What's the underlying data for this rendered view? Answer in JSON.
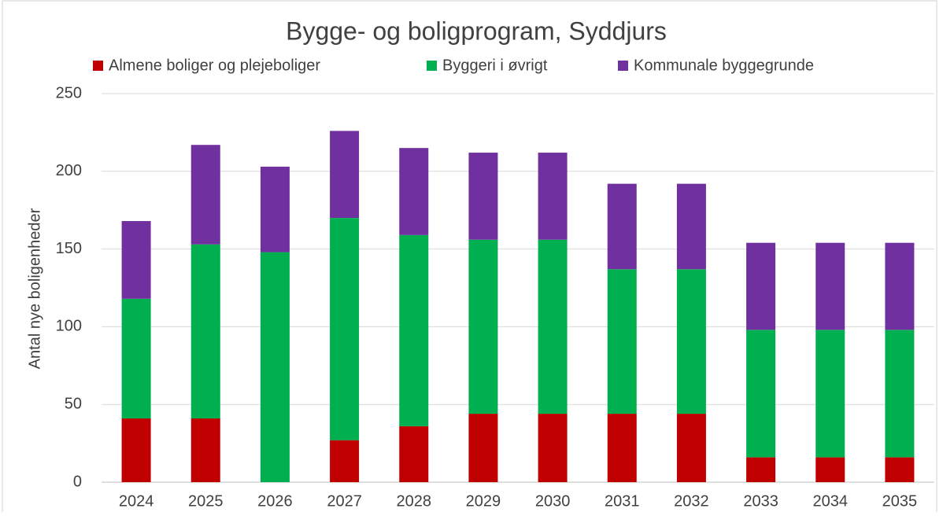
{
  "chart_data": {
    "type": "stacked_bar",
    "title": "Bygge- og boligprogram, Syddjurs",
    "y_label": "Antal nye boligenheder",
    "categories": [
      "2024",
      "2025",
      "2026",
      "2027",
      "2028",
      "2029",
      "2030",
      "2031",
      "2032",
      "2033",
      "2034",
      "2035"
    ],
    "series": [
      {
        "name": "Almene boliger og plejeboliger",
        "color": "#c00000",
        "values": [
          41,
          41,
          0,
          27,
          36,
          44,
          44,
          44,
          44,
          16,
          16,
          16
        ]
      },
      {
        "name": "Byggeri i øvrigt",
        "color": "#00b050",
        "values": [
          77,
          112,
          148,
          143,
          123,
          112,
          112,
          93,
          93,
          82,
          82,
          82
        ]
      },
      {
        "name": "Kommunale byggegrunde",
        "color": "#7030a0",
        "values": [
          50,
          64,
          55,
          56,
          56,
          56,
          56,
          55,
          55,
          56,
          56,
          56
        ]
      }
    ],
    "ylim": [
      0,
      250
    ],
    "yticks": [
      0,
      50,
      100,
      150,
      200,
      250
    ],
    "grid": true,
    "legend": "top"
  }
}
